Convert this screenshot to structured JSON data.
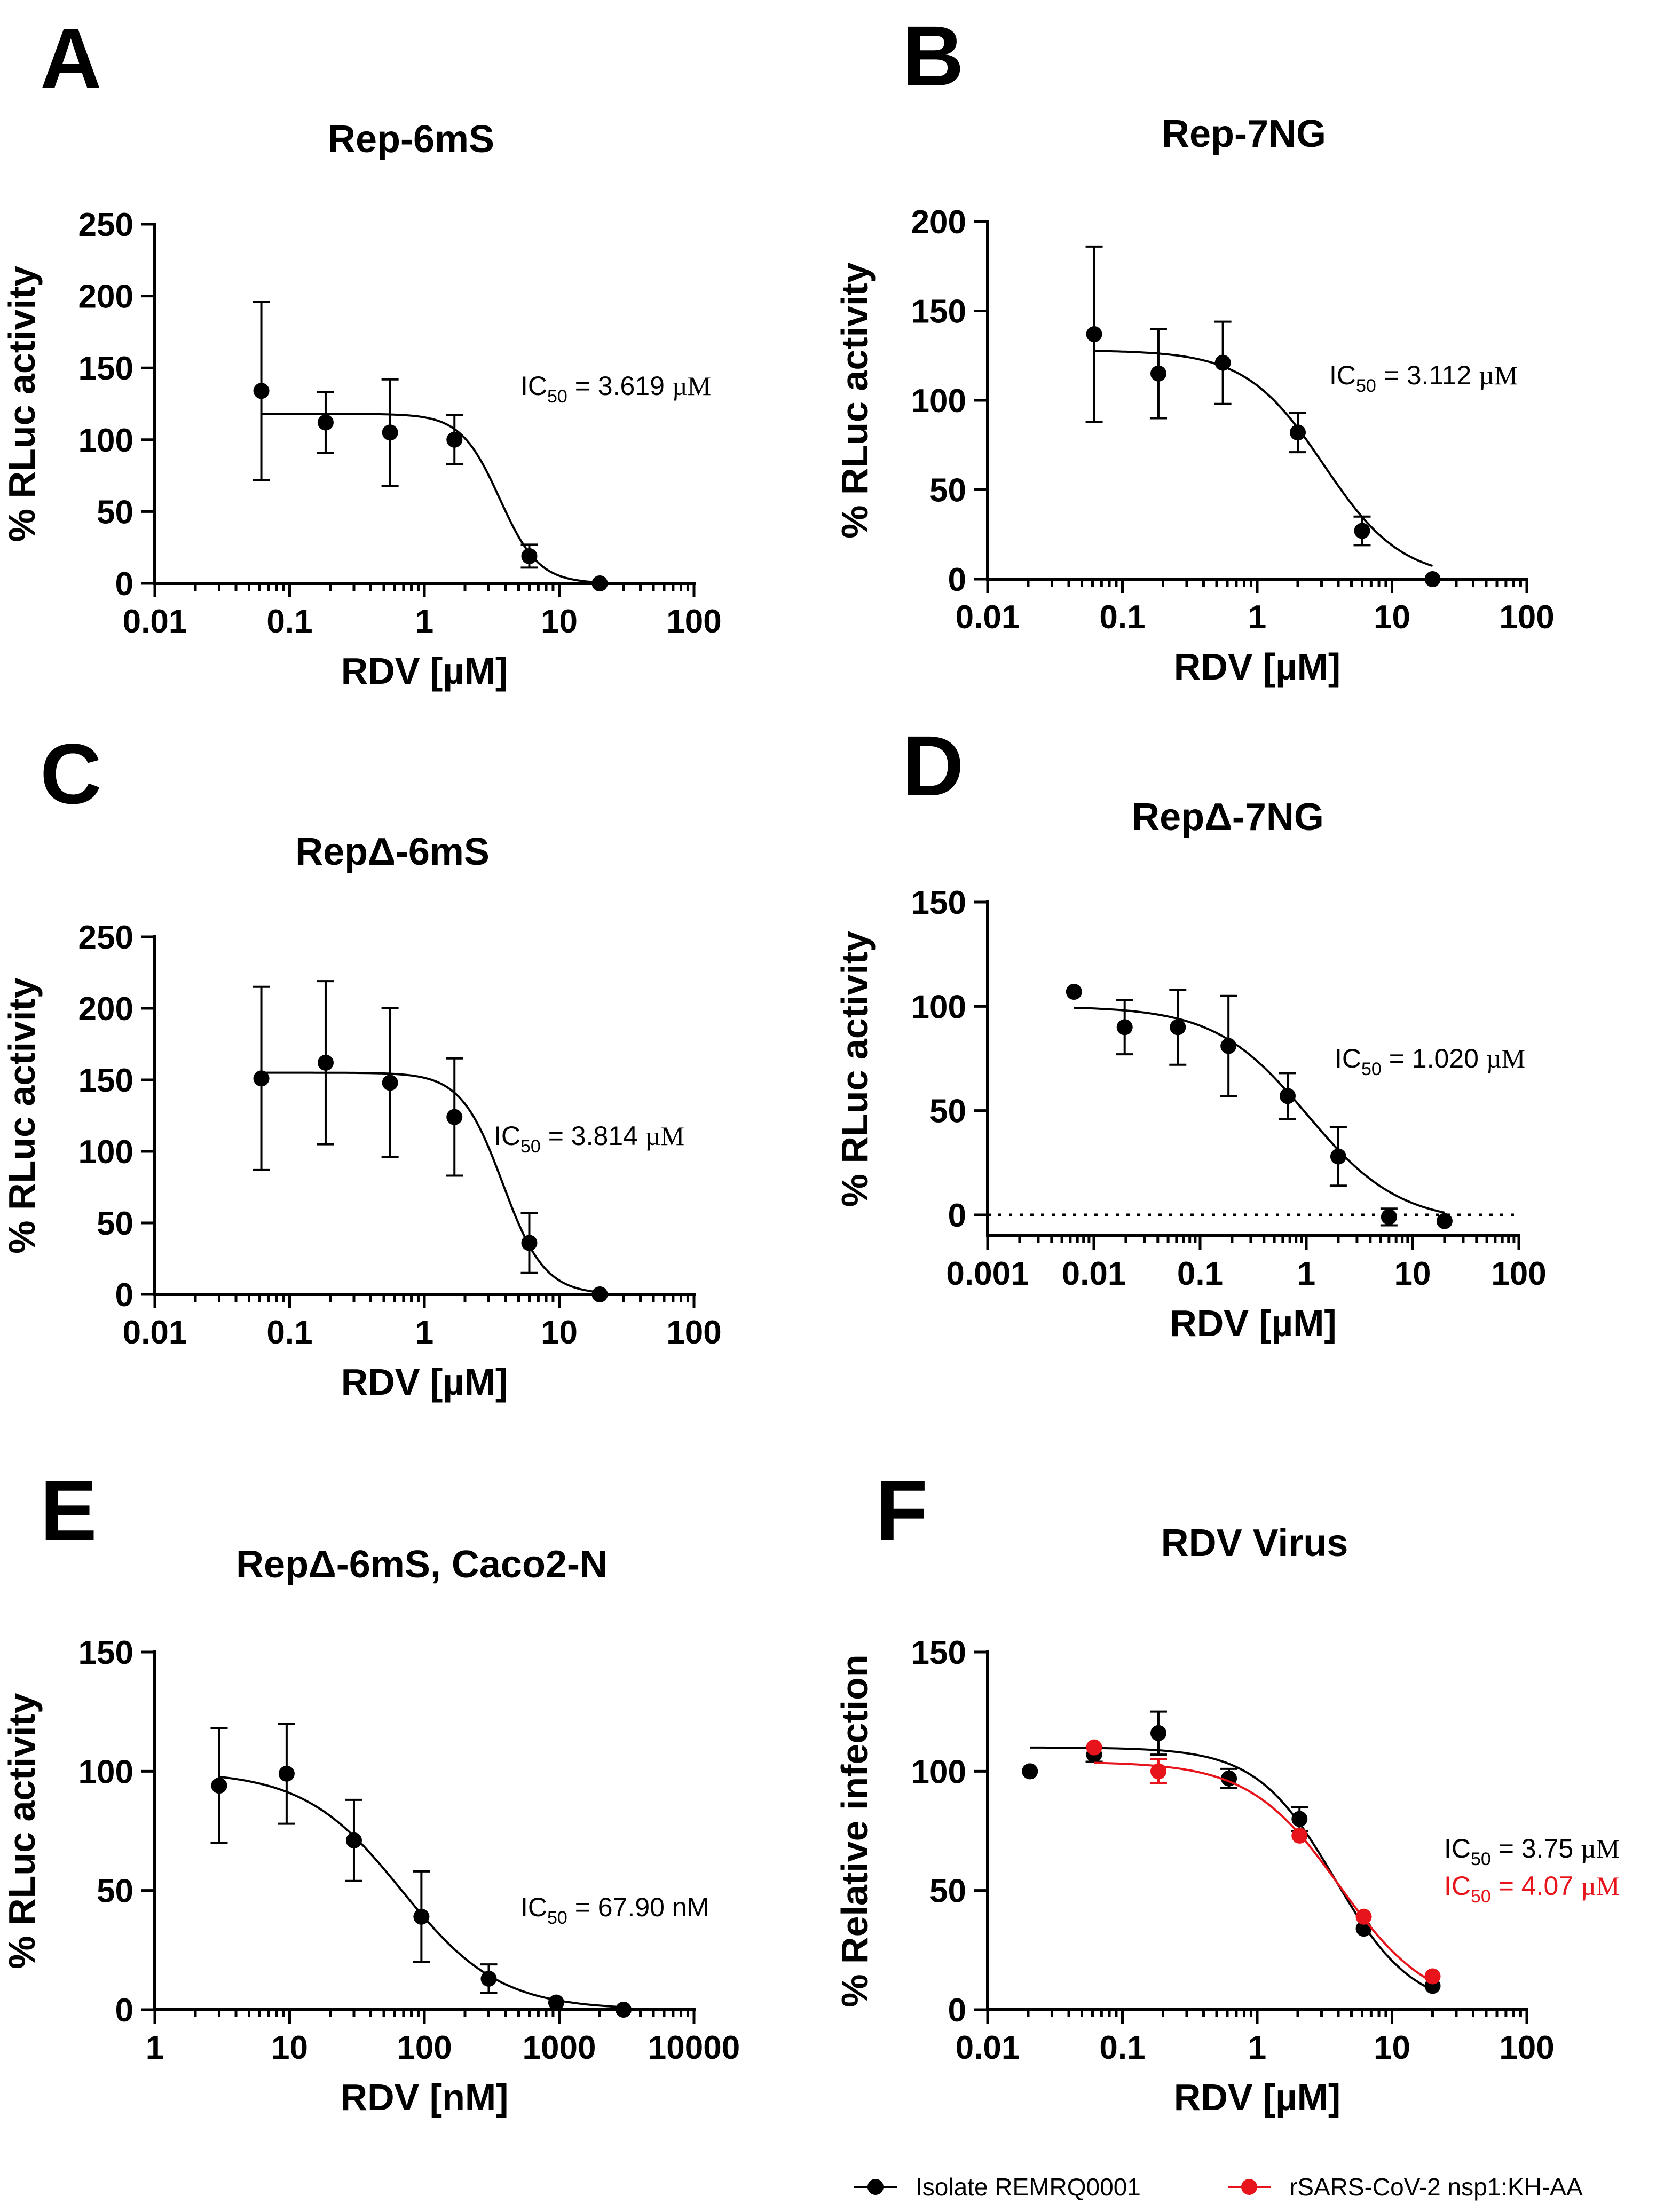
{
  "panels": [
    {
      "letter": "A",
      "title": "Rep-6mS",
      "xlabel": "RDV [µM]",
      "ylabel": "% RLuc activity"
    },
    {
      "letter": "B",
      "title": "Rep-7NG",
      "xlabel": "RDV [µM]",
      "ylabel": "% RLuc activity"
    },
    {
      "letter": "C",
      "title": "RepΔ-6mS",
      "xlabel": "RDV [µM]",
      "ylabel": "% RLuc activity"
    },
    {
      "letter": "D",
      "title": "RepΔ-7NG",
      "xlabel": "RDV [µM]",
      "ylabel": "% RLuc activity"
    },
    {
      "letter": "E",
      "title": "RepΔ-6mS, Caco2-N",
      "xlabel": "RDV [nM]",
      "ylabel": "% RLuc activity"
    },
    {
      "letter": "F",
      "title": "RDV Virus",
      "xlabel": "RDV [µM]",
      "ylabel": "% Relative infection"
    }
  ],
  "chart_data": [
    {
      "type": "scatter",
      "title": "Rep-6mS",
      "xlabel": "RDV [µM]",
      "ylabel": "% RLuc activity",
      "xscale": "log",
      "xlim": [
        0.01,
        100
      ],
      "ylim": [
        0,
        250
      ],
      "xticks": [
        0.01,
        0.1,
        1,
        10,
        100
      ],
      "xtick_labels": [
        "0.01",
        "0.1",
        "1",
        "10",
        "100"
      ],
      "yticks": [
        0,
        50,
        100,
        150,
        200,
        250
      ],
      "ytick_labels": [
        "0",
        "50",
        "100",
        "150",
        "200",
        "250"
      ],
      "zero_line": false,
      "series": [
        {
          "name": "Rep-6mS",
          "color": "#000000",
          "x": [
            0.0617,
            0.185,
            0.556,
            1.67,
            6.0,
            20.0
          ],
          "y": [
            134,
            112,
            105,
            100,
            19,
            0
          ],
          "err": [
            62,
            21,
            37,
            17,
            8,
            0
          ],
          "fit": {
            "top": 118,
            "bottom": 0,
            "ic50": 3.619,
            "hill": 3.0
          },
          "ic50_label": {
            "prefix": "IC",
            "sub": "50",
            "rest": " = 3.619 ",
            "unit": "µM"
          }
        }
      ]
    },
    {
      "type": "scatter",
      "title": "Rep-7NG",
      "xlabel": "RDV [µM]",
      "ylabel": "% RLuc activity",
      "xscale": "log",
      "xlim": [
        0.01,
        100
      ],
      "ylim": [
        0,
        200
      ],
      "xticks": [
        0.01,
        0.1,
        1,
        10,
        100
      ],
      "xtick_labels": [
        "0.01",
        "0.1",
        "1",
        "10",
        "100"
      ],
      "yticks": [
        0,
        50,
        100,
        150,
        200
      ],
      "ytick_labels": [
        "0",
        "50",
        "100",
        "150",
        "200"
      ],
      "zero_line": true,
      "series": [
        {
          "name": "Rep-7NG",
          "color": "#000000",
          "x": [
            0.0617,
            0.185,
            0.556,
            2.0,
            6.0,
            20.0
          ],
          "y": [
            137,
            115,
            121,
            82,
            27,
            0
          ],
          "err": [
            49,
            25,
            23,
            11,
            8,
            0
          ],
          "fit": {
            "top": 128,
            "bottom": 0,
            "ic50": 3.112,
            "hill": 1.5
          },
          "ic50_label": {
            "prefix": "IC",
            "sub": "50",
            "rest": " = 3.112 ",
            "unit": "µM"
          }
        }
      ]
    },
    {
      "type": "scatter",
      "title": "RepΔ-6mS",
      "xlabel": "RDV [µM]",
      "ylabel": "% RLuc activity",
      "xscale": "log",
      "xlim": [
        0.01,
        100
      ],
      "ylim": [
        0,
        250
      ],
      "xticks": [
        0.01,
        0.1,
        1,
        10,
        100
      ],
      "xtick_labels": [
        "0.01",
        "0.1",
        "1",
        "10",
        "100"
      ],
      "yticks": [
        0,
        50,
        100,
        150,
        200,
        250
      ],
      "ytick_labels": [
        "0",
        "50",
        "100",
        "150",
        "200",
        "250"
      ],
      "zero_line": false,
      "series": [
        {
          "name": "RepΔ-6mS",
          "color": "#000000",
          "x": [
            0.0617,
            0.185,
            0.556,
            1.67,
            6.0,
            20.0
          ],
          "y": [
            151,
            162,
            148,
            124,
            36,
            0
          ],
          "err": [
            64,
            57,
            52,
            41,
            21,
            0
          ],
          "fit": {
            "top": 155,
            "bottom": 0,
            "ic50": 3.814,
            "hill": 2.8
          },
          "ic50_label": {
            "prefix": "IC",
            "sub": "50",
            "rest": " = 3.814 ",
            "unit": "µM"
          }
        }
      ]
    },
    {
      "type": "scatter",
      "title": "RepΔ-7NG",
      "xlabel": "RDV [µM]",
      "ylabel": "% RLuc activity",
      "xscale": "log",
      "xlim": [
        0.001,
        100
      ],
      "ylim": [
        -10,
        150
      ],
      "xticks": [
        0.001,
        0.01,
        0.1,
        1,
        10,
        100
      ],
      "xtick_labels": [
        "0.001",
        "0.01",
        "0.1",
        "1",
        "10",
        "100"
      ],
      "yticks": [
        0,
        50,
        100,
        150
      ],
      "ytick_labels": [
        "0",
        "50",
        "100",
        "150"
      ],
      "zero_line": true,
      "series": [
        {
          "name": "RepΔ-7NG",
          "color": "#000000",
          "x": [
            0.0065,
            0.0195,
            0.0617,
            0.185,
            0.667,
            2.0,
            6.0,
            20.0
          ],
          "y": [
            107,
            90,
            90,
            81,
            57,
            28,
            -1,
            -3
          ],
          "err": [
            0,
            13,
            18,
            24,
            11,
            14,
            4,
            0
          ],
          "fit": {
            "top": 100,
            "bottom": -4,
            "ic50": 1.02,
            "hill": 1.0
          },
          "ic50_label": {
            "prefix": "IC",
            "sub": "50",
            "rest": " = 1.020 ",
            "unit": "µM"
          }
        }
      ]
    },
    {
      "type": "scatter",
      "title": "RepΔ-6mS, Caco2-N",
      "xlabel": "RDV [nM]",
      "ylabel": "% RLuc activity",
      "xscale": "log",
      "xlim": [
        1,
        10000
      ],
      "ylim": [
        0,
        150
      ],
      "xticks": [
        1,
        10,
        100,
        1000,
        10000
      ],
      "xtick_labels": [
        "1",
        "10",
        "100",
        "1000",
        "10000"
      ],
      "yticks": [
        0,
        50,
        100,
        150
      ],
      "ytick_labels": [
        "0",
        "50",
        "100",
        "150"
      ],
      "zero_line": false,
      "series": [
        {
          "name": "RepΔ-6mS, Caco2-N",
          "color": "#000000",
          "x": [
            3,
            9.5,
            30,
            95,
            300,
            950,
            3000
          ],
          "y": [
            94,
            99,
            71,
            39,
            13,
            3,
            0
          ],
          "err": [
            24,
            21,
            17,
            19,
            6,
            0,
            0
          ],
          "fit": {
            "top": 100,
            "bottom": 0,
            "ic50": 67.9,
            "hill": 1.2
          },
          "ic50_label": {
            "prefix": "IC",
            "sub": "50",
            "rest": " = 67.90 nM",
            "unit": ""
          }
        }
      ]
    },
    {
      "type": "scatter",
      "title": "RDV Virus",
      "xlabel": "RDV [µM]",
      "ylabel": "% Relative infection",
      "xscale": "log",
      "xlim": [
        0.01,
        100
      ],
      "ylim": [
        0,
        150
      ],
      "xticks": [
        0.01,
        0.1,
        1,
        10,
        100
      ],
      "xtick_labels": [
        "0.01",
        "0.1",
        "1",
        "10",
        "100"
      ],
      "yticks": [
        0,
        50,
        100,
        150
      ],
      "ytick_labels": [
        "0",
        "50",
        "100",
        "150"
      ],
      "zero_line": false,
      "series": [
        {
          "name": "Isolate REMRQ0001",
          "color": "#000000",
          "x": [
            0.0206,
            0.0617,
            0.185,
            0.617,
            2.06,
            6.17,
            20.0
          ],
          "y": [
            100,
            107,
            116,
            97,
            80,
            34,
            10
          ],
          "err": [
            0,
            3,
            9,
            4,
            5,
            0,
            0
          ],
          "fit": {
            "top": 110,
            "bottom": 0,
            "ic50": 3.75,
            "hill": 1.5
          },
          "ic50_label": {
            "prefix": "IC",
            "sub": "50",
            "rest": " = 3.75 ",
            "unit": "µM"
          }
        },
        {
          "name": "rSARS-CoV-2 nsp1:KH-AA",
          "color": "#e8141c",
          "x": [
            0.0617,
            0.185,
            2.06,
            6.17,
            20.0
          ],
          "y": [
            110,
            100,
            73,
            39,
            14
          ],
          "err": [
            0,
            5,
            0,
            0,
            0
          ],
          "fit": {
            "top": 104,
            "bottom": 0,
            "ic50": 4.07,
            "hill": 1.3
          },
          "ic50_label": {
            "prefix": "IC",
            "sub": "50",
            "rest": " = 4.07 ",
            "unit": "µM"
          }
        }
      ]
    }
  ],
  "legend": {
    "items": [
      {
        "label": "Isolate REMRQ0001",
        "color": "#000000"
      },
      {
        "label": "rSARS-CoV-2 nsp1:KH-AA",
        "color": "#e8141c"
      }
    ]
  }
}
